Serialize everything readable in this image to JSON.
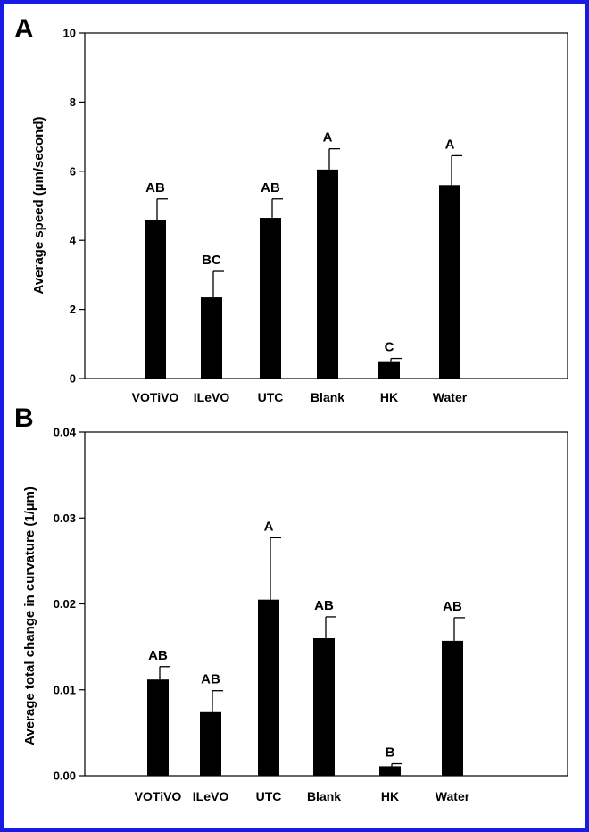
{
  "chart_data": [
    {
      "type": "bar",
      "panel_label": "A",
      "ylabel": "Average speed (µm/second)",
      "categories": [
        "VOTiVO",
        "ILeVO",
        "UTC",
        "Blank",
        "HK",
        "Water"
      ],
      "values": [
        4.6,
        2.35,
        4.65,
        6.05,
        0.5,
        5.6
      ],
      "error": [
        0.6,
        0.75,
        0.55,
        0.6,
        0.08,
        0.85
      ],
      "significance": [
        "AB",
        "BC",
        "AB",
        "A",
        "C",
        "A"
      ],
      "ylim": [
        0,
        10
      ],
      "yticks": [
        "0",
        "2",
        "4",
        "6",
        "8",
        "10"
      ],
      "grid": false,
      "bar_color": "#000000"
    },
    {
      "type": "bar",
      "panel_label": "B",
      "ylabel": "Average total change in curvature (1/µm)",
      "categories": [
        "VOTiVO",
        "ILeVO",
        "UTC",
        "Blank",
        "HK",
        "Water"
      ],
      "values": [
        0.0112,
        0.0074,
        0.0205,
        0.016,
        0.0011,
        0.0157
      ],
      "error": [
        0.0015,
        0.0025,
        0.0072,
        0.0025,
        0.0003,
        0.0027
      ],
      "significance": [
        "AB",
        "AB",
        "A",
        "AB",
        "B",
        "AB"
      ],
      "ylim": [
        0,
        0.04
      ],
      "yticks": [
        "0.00",
        "0.01",
        "0.02",
        "0.03",
        "0.04"
      ],
      "grid": false,
      "bar_color": "#000000"
    }
  ],
  "frame_color": "#1a1ae6"
}
